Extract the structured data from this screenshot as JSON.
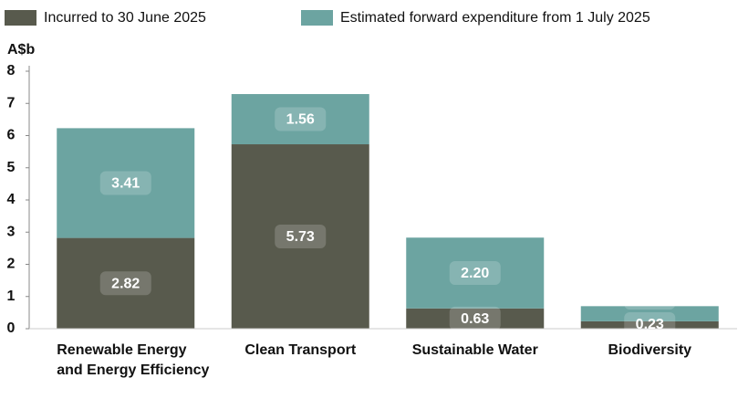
{
  "chart_data": {
    "type": "stacked_bar",
    "y_label": "A$b",
    "categories": [
      "Renewable Energy and Energy Efficiency",
      "Clean Transport",
      "Sustainable Water",
      "Biodiversity"
    ],
    "series": [
      {
        "name": "Incurred to 30 June 2025",
        "color": "#585a4d",
        "values": [
          2.82,
          5.73,
          0.63,
          0.23
        ],
        "value_labels": [
          "2.82",
          "5.73",
          "0.63",
          "0.23"
        ]
      },
      {
        "name": "Estimated forward expenditure from 1 July 2025",
        "color": "#6ca4a1",
        "values": [
          3.41,
          1.56,
          2.2,
          0.47
        ],
        "value_labels": [
          "3.41",
          "1.56",
          "2.20",
          "0.47"
        ]
      }
    ],
    "ylim": [
      0,
      8
    ],
    "yticks": [
      0,
      1,
      2,
      3,
      4,
      5,
      6,
      7,
      8
    ],
    "grid": false
  }
}
